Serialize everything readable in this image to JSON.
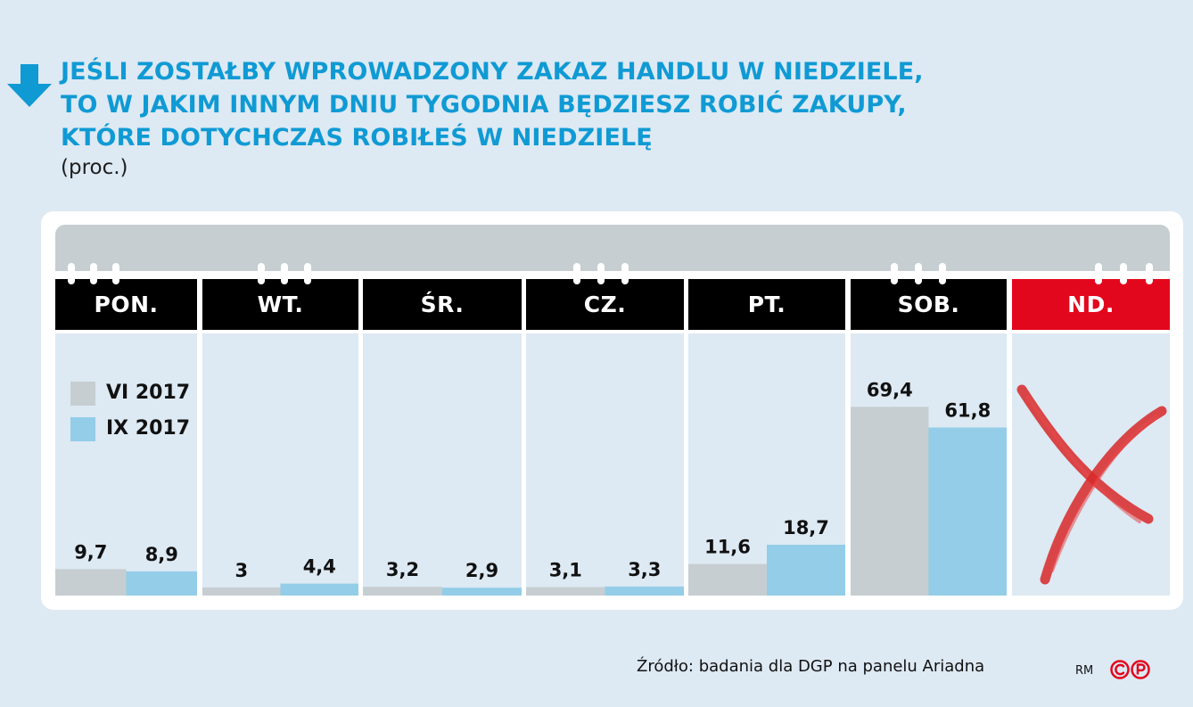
{
  "title": {
    "line1": "JEŚLI ZOSTAŁBY WPROWADZONY ZAKAZ HANDLU W NIEDZIELE,",
    "line2": "TO W JAKIM INNYM DNIU TYGODNIA BĘDZIESZ ROBIĆ ZAKUPY,",
    "line3": "KTÓRE DOTYCHCZAS ROBIŁEŚ W NIEDZIELĘ",
    "subtitle": "(proc.)",
    "icon": "arrow-down-icon"
  },
  "days": [
    "PON.",
    "WT.",
    "ŚR.",
    "CZ.",
    "PT.",
    "SOB.",
    "ND."
  ],
  "legend": [
    {
      "label": "VI 2017",
      "color": "#c6ced1"
    },
    {
      "label": "IX 2017",
      "color": "#93cde8"
    }
  ],
  "chart_data": {
    "type": "bar",
    "title": "JEŚLI ZOSTAŁBY WPROWADZONY ZAKAZ HANDLU W NIEDZIELE, TO W JAKIM INNYM DNIU TYGODNIA BĘDZIESZ ROBIĆ ZAKUPY, KTÓRE DOTYCHCZAS ROBIŁEŚ W NIEDZIELĘ",
    "subtitle": "(proc.)",
    "categories": [
      "PON.",
      "WT.",
      "ŚR.",
      "CZ.",
      "PT.",
      "SOB.",
      "ND."
    ],
    "series": [
      {
        "name": "VI 2017",
        "values": [
          9.7,
          3,
          3.2,
          3.1,
          11.6,
          69.4,
          null
        ],
        "labels": [
          "9,7",
          "3",
          "3,2",
          "3,1",
          "11,6",
          "69,4",
          ""
        ]
      },
      {
        "name": "IX 2017",
        "values": [
          8.9,
          4.4,
          2.9,
          3.3,
          18.7,
          61.8,
          null
        ],
        "labels": [
          "8,9",
          "4,4",
          "2,9",
          "3,3",
          "18,7",
          "61,8",
          ""
        ]
      }
    ],
    "ylim": [
      0,
      100
    ],
    "grid": false,
    "legend_position": "left",
    "sunday_marker": "cross-icon",
    "colors": {
      "VI 2017": "#c6ced1",
      "IX 2017": "#93cde8",
      "header": "#000000",
      "sunday_header": "#e3071d",
      "title": "#0f9ad4"
    }
  },
  "source": "Źródło: badania dla DGP na panelu Ariadna",
  "author": "RM",
  "logo": "copyright-publisher-icon"
}
